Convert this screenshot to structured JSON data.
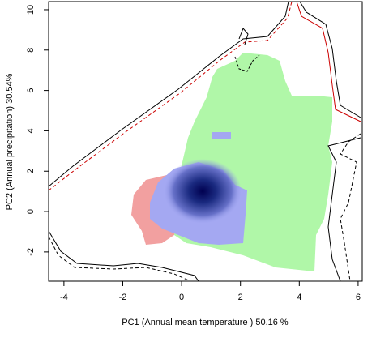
{
  "chart_data": {
    "type": "density",
    "xlabel": "PC1 (Annual mean temperature ) 50.16 %",
    "ylabel": "PC2 (Annual precipitation) 30.54%",
    "xlim": [
      -4.52,
      6.14
    ],
    "ylim": [
      -3.45,
      10.4
    ],
    "xticks": [
      -4,
      -2,
      0,
      2,
      4,
      6
    ],
    "yticks": [
      -2,
      0,
      2,
      4,
      6,
      8,
      10
    ]
  }
}
